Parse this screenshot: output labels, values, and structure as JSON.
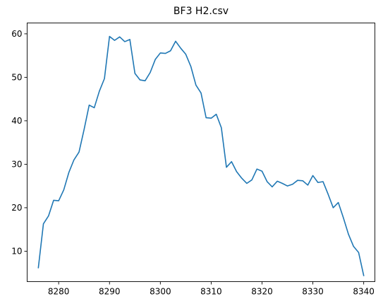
{
  "chart_data": {
    "type": "line",
    "title": "BF3 H2.csv",
    "xlabel": "",
    "ylabel": "",
    "xlim": [
      8273.8,
      8342.2
    ],
    "ylim": [
      3.0,
      62.5
    ],
    "xticks": [
      8280,
      8290,
      8300,
      8310,
      8320,
      8330,
      8340
    ],
    "yticks": [
      10,
      20,
      30,
      40,
      50,
      60
    ],
    "grid": false,
    "color": "#1f77b4",
    "series": [
      {
        "x": [
          8276,
          8277,
          8278,
          8279,
          8280,
          8281,
          8282,
          8283,
          8284,
          8285,
          8286,
          8287,
          8288,
          8289,
          8290,
          8291,
          8292,
          8293,
          8294,
          8295,
          8296,
          8297,
          8298,
          8299,
          8300,
          8301,
          8302,
          8303,
          8304,
          8305,
          8306,
          8307,
          8308,
          8309,
          8310,
          8311,
          8312,
          8313,
          8314,
          8315,
          8316,
          8317,
          8318,
          8319,
          8320,
          8321,
          8322,
          8323,
          8324,
          8325,
          8326,
          8327,
          8328,
          8329,
          8330,
          8331,
          8332,
          8333,
          8334,
          8335,
          8336,
          8337,
          8338,
          8339,
          8340
        ],
        "y": [
          6.2,
          16.3,
          18.1,
          21.7,
          21.6,
          24.1,
          28.1,
          31.0,
          32.8,
          38.0,
          43.6,
          43.0,
          46.8,
          49.7,
          59.4,
          58.5,
          59.3,
          58.2,
          58.7,
          50.9,
          49.4,
          49.2,
          51.1,
          54.1,
          55.6,
          55.5,
          56.1,
          58.3,
          56.7,
          55.3,
          52.5,
          48.2,
          46.4,
          40.7,
          40.6,
          41.5,
          38.4,
          29.3,
          30.6,
          28.3,
          26.8,
          25.6,
          26.4,
          28.9,
          28.4,
          26.0,
          24.8,
          26.1,
          25.6,
          25.0,
          25.4,
          26.3,
          26.2,
          25.2,
          27.4,
          25.8,
          26.0,
          23.1,
          20.0,
          21.2,
          17.7,
          13.9,
          11.1,
          9.7,
          4.4
        ]
      }
    ]
  }
}
